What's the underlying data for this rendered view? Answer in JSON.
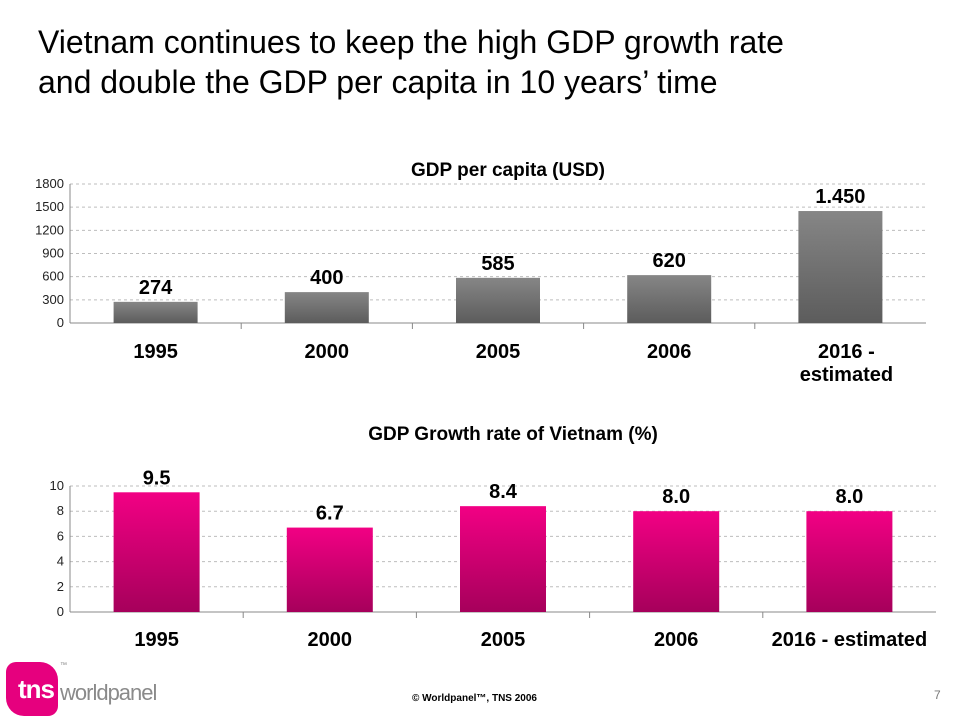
{
  "slide": {
    "title": "Vietnam continues to keep the high GDP growth rate\nand double the GDP per capita in 10 years’ time",
    "footer": "© Worldpanel™, TNS 2006",
    "page_number": "7"
  },
  "logo": {
    "mark": "tns",
    "tm": "™",
    "brand": "worldpanel",
    "mark_color": "#e6007e"
  },
  "chart_data": [
    {
      "type": "bar",
      "title": "GDP per capita (USD)",
      "categories": [
        "1995",
        "2000",
        "2005",
        "2006",
        "2016 - estimated"
      ],
      "values": [
        274,
        400,
        585,
        620,
        1450
      ],
      "data_labels": [
        "274",
        "400",
        "585",
        "620",
        "1.450"
      ],
      "ylim": [
        0,
        1800
      ],
      "yticks": [
        0,
        300,
        600,
        900,
        1200,
        1500,
        1800
      ],
      "grid": true,
      "bar_color": "#808080"
    },
    {
      "type": "bar",
      "title": "GDP Growth rate of Vietnam (%)",
      "categories": [
        "1995",
        "2000",
        "2005",
        "2006",
        "2016 - estimated"
      ],
      "values": [
        9.5,
        6.7,
        8.4,
        8.0,
        8.0
      ],
      "data_labels": [
        "9.5",
        "6.7",
        "8.4",
        "8.0",
        "8.0"
      ],
      "ylim": [
        0,
        10
      ],
      "yticks": [
        0,
        2,
        4,
        6,
        8,
        10
      ],
      "grid": true,
      "bar_color": "#e6007e"
    }
  ]
}
